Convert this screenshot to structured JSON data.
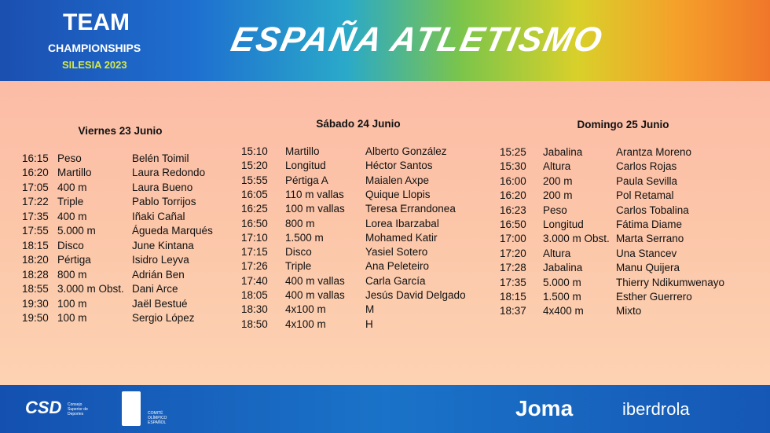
{
  "header": {
    "team": "TEAM",
    "championships": "CHAMPIONSHIPS",
    "edition": "SILESIA 2023",
    "brand": "ESPAÑA ATLETISMO"
  },
  "days": [
    {
      "title": "Viernes 23 Junio",
      "rows": [
        [
          "16:15",
          "Peso",
          "Belén Toimil"
        ],
        [
          "16:20",
          "Martillo",
          "Laura Redondo"
        ],
        [
          "17:05",
          "400 m",
          "Laura Bueno"
        ],
        [
          "17:22",
          "Triple",
          "Pablo Torrijos"
        ],
        [
          "17:35",
          "400 m",
          "Iñaki Cañal"
        ],
        [
          "17:55",
          "5.000 m",
          "Águeda Marqués"
        ],
        [
          "18:15",
          "Disco",
          "June Kintana"
        ],
        [
          "18:20",
          "Pértiga",
          "Isidro Leyva"
        ],
        [
          "18:28",
          "800 m",
          "Adrián Ben"
        ],
        [
          "18:55",
          "3.000 m Obst.",
          "Dani Arce"
        ],
        [
          "19:30",
          "100 m",
          "Jaël Bestué"
        ],
        [
          "19:50",
          "100 m",
          "Sergio López"
        ]
      ]
    },
    {
      "title": "Sábado 24 Junio",
      "rows": [
        [
          "15:10",
          "Martillo",
          "Alberto González"
        ],
        [
          "15:20",
          "Longitud",
          "Héctor Santos"
        ],
        [
          "15:55",
          "Pértiga A",
          "Maialen Axpe"
        ],
        [
          "16:05",
          "110 m vallas",
          "Quique Llopis"
        ],
        [
          "16:25",
          "100 m vallas",
          "Teresa Errandonea"
        ],
        [
          "16:50",
          "800 m",
          "Lorea Ibarzabal"
        ],
        [
          "17:10",
          "1.500 m",
          "Mohamed Katir"
        ],
        [
          "17:15",
          "Disco",
          "Yasiel Sotero"
        ],
        [
          "17:26",
          "Triple",
          "Ana Peleteiro"
        ],
        [
          "17:40",
          "400 m vallas",
          "Carla García"
        ],
        [
          "18:05",
          "400 m vallas",
          "Jesús David Delgado"
        ],
        [
          "18:30",
          "4x100 m",
          "M"
        ],
        [
          "18:50",
          "4x100 m",
          "H"
        ]
      ]
    },
    {
      "title": "Domingo 25 Junio",
      "rows": [
        [
          "15:25",
          "Jabalina",
          "Arantza Moreno"
        ],
        [
          "15:30",
          "Altura",
          "Carlos Rojas"
        ],
        [
          "16:00",
          "200 m",
          "Paula Sevilla"
        ],
        [
          "16:20",
          "200 m",
          "Pol Retamal"
        ],
        [
          "16:23",
          "Peso",
          "Carlos Tobalina"
        ],
        [
          "16:50",
          "Longitud",
          "Fátima Diame"
        ],
        [
          "17:00",
          "3.000 m Obst.",
          "Marta Serrano"
        ],
        [
          "17:20",
          "Altura",
          "Una Stancev"
        ],
        [
          "17:28",
          "Jabalina",
          "Manu Quijera"
        ],
        [
          "17:35",
          "5.000 m",
          "Thierry Ndikumwenayo"
        ],
        [
          "18:15",
          "1.500 m",
          "Esther Guerrero"
        ],
        [
          "18:37",
          "4x400 m",
          "Mixto"
        ]
      ]
    }
  ],
  "footer": {
    "csd": "CSD",
    "csd_name": "Consejo Superior de Deportes",
    "coe": "COMITÉ OLÍMPICO ESPAÑOL",
    "joma": "Joma",
    "iberdrola": "iberdrola"
  }
}
